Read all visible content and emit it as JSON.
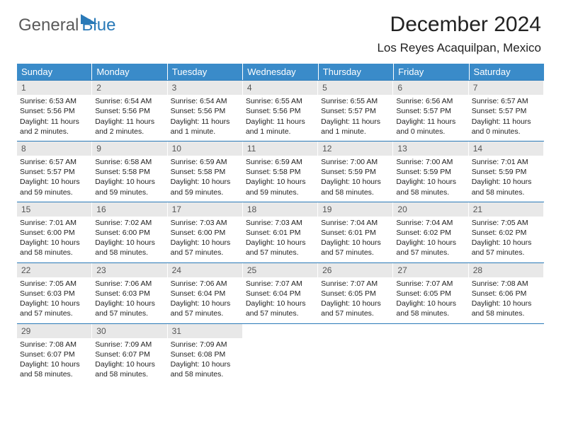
{
  "logo": {
    "part1": "General",
    "part2": "Blue"
  },
  "header": {
    "title": "December 2024",
    "location": "Los Reyes Acaquilpan, Mexico"
  },
  "calendar": {
    "header_bg": "#3a8bc9",
    "header_fg": "#ffffff",
    "daynum_bg": "#e8e8e8",
    "rule_color": "#2a7ab8",
    "weekdays": [
      "Sunday",
      "Monday",
      "Tuesday",
      "Wednesday",
      "Thursday",
      "Friday",
      "Saturday"
    ],
    "weeks": [
      [
        {
          "n": "1",
          "sr": "Sunrise: 6:53 AM",
          "ss": "Sunset: 5:56 PM",
          "d1": "Daylight: 11 hours",
          "d2": "and 2 minutes."
        },
        {
          "n": "2",
          "sr": "Sunrise: 6:54 AM",
          "ss": "Sunset: 5:56 PM",
          "d1": "Daylight: 11 hours",
          "d2": "and 2 minutes."
        },
        {
          "n": "3",
          "sr": "Sunrise: 6:54 AM",
          "ss": "Sunset: 5:56 PM",
          "d1": "Daylight: 11 hours",
          "d2": "and 1 minute."
        },
        {
          "n": "4",
          "sr": "Sunrise: 6:55 AM",
          "ss": "Sunset: 5:56 PM",
          "d1": "Daylight: 11 hours",
          "d2": "and 1 minute."
        },
        {
          "n": "5",
          "sr": "Sunrise: 6:55 AM",
          "ss": "Sunset: 5:57 PM",
          "d1": "Daylight: 11 hours",
          "d2": "and 1 minute."
        },
        {
          "n": "6",
          "sr": "Sunrise: 6:56 AM",
          "ss": "Sunset: 5:57 PM",
          "d1": "Daylight: 11 hours",
          "d2": "and 0 minutes."
        },
        {
          "n": "7",
          "sr": "Sunrise: 6:57 AM",
          "ss": "Sunset: 5:57 PM",
          "d1": "Daylight: 11 hours",
          "d2": "and 0 minutes."
        }
      ],
      [
        {
          "n": "8",
          "sr": "Sunrise: 6:57 AM",
          "ss": "Sunset: 5:57 PM",
          "d1": "Daylight: 10 hours",
          "d2": "and 59 minutes."
        },
        {
          "n": "9",
          "sr": "Sunrise: 6:58 AM",
          "ss": "Sunset: 5:58 PM",
          "d1": "Daylight: 10 hours",
          "d2": "and 59 minutes."
        },
        {
          "n": "10",
          "sr": "Sunrise: 6:59 AM",
          "ss": "Sunset: 5:58 PM",
          "d1": "Daylight: 10 hours",
          "d2": "and 59 minutes."
        },
        {
          "n": "11",
          "sr": "Sunrise: 6:59 AM",
          "ss": "Sunset: 5:58 PM",
          "d1": "Daylight: 10 hours",
          "d2": "and 59 minutes."
        },
        {
          "n": "12",
          "sr": "Sunrise: 7:00 AM",
          "ss": "Sunset: 5:59 PM",
          "d1": "Daylight: 10 hours",
          "d2": "and 58 minutes."
        },
        {
          "n": "13",
          "sr": "Sunrise: 7:00 AM",
          "ss": "Sunset: 5:59 PM",
          "d1": "Daylight: 10 hours",
          "d2": "and 58 minutes."
        },
        {
          "n": "14",
          "sr": "Sunrise: 7:01 AM",
          "ss": "Sunset: 5:59 PM",
          "d1": "Daylight: 10 hours",
          "d2": "and 58 minutes."
        }
      ],
      [
        {
          "n": "15",
          "sr": "Sunrise: 7:01 AM",
          "ss": "Sunset: 6:00 PM",
          "d1": "Daylight: 10 hours",
          "d2": "and 58 minutes."
        },
        {
          "n": "16",
          "sr": "Sunrise: 7:02 AM",
          "ss": "Sunset: 6:00 PM",
          "d1": "Daylight: 10 hours",
          "d2": "and 58 minutes."
        },
        {
          "n": "17",
          "sr": "Sunrise: 7:03 AM",
          "ss": "Sunset: 6:00 PM",
          "d1": "Daylight: 10 hours",
          "d2": "and 57 minutes."
        },
        {
          "n": "18",
          "sr": "Sunrise: 7:03 AM",
          "ss": "Sunset: 6:01 PM",
          "d1": "Daylight: 10 hours",
          "d2": "and 57 minutes."
        },
        {
          "n": "19",
          "sr": "Sunrise: 7:04 AM",
          "ss": "Sunset: 6:01 PM",
          "d1": "Daylight: 10 hours",
          "d2": "and 57 minutes."
        },
        {
          "n": "20",
          "sr": "Sunrise: 7:04 AM",
          "ss": "Sunset: 6:02 PM",
          "d1": "Daylight: 10 hours",
          "d2": "and 57 minutes."
        },
        {
          "n": "21",
          "sr": "Sunrise: 7:05 AM",
          "ss": "Sunset: 6:02 PM",
          "d1": "Daylight: 10 hours",
          "d2": "and 57 minutes."
        }
      ],
      [
        {
          "n": "22",
          "sr": "Sunrise: 7:05 AM",
          "ss": "Sunset: 6:03 PM",
          "d1": "Daylight: 10 hours",
          "d2": "and 57 minutes."
        },
        {
          "n": "23",
          "sr": "Sunrise: 7:06 AM",
          "ss": "Sunset: 6:03 PM",
          "d1": "Daylight: 10 hours",
          "d2": "and 57 minutes."
        },
        {
          "n": "24",
          "sr": "Sunrise: 7:06 AM",
          "ss": "Sunset: 6:04 PM",
          "d1": "Daylight: 10 hours",
          "d2": "and 57 minutes."
        },
        {
          "n": "25",
          "sr": "Sunrise: 7:07 AM",
          "ss": "Sunset: 6:04 PM",
          "d1": "Daylight: 10 hours",
          "d2": "and 57 minutes."
        },
        {
          "n": "26",
          "sr": "Sunrise: 7:07 AM",
          "ss": "Sunset: 6:05 PM",
          "d1": "Daylight: 10 hours",
          "d2": "and 57 minutes."
        },
        {
          "n": "27",
          "sr": "Sunrise: 7:07 AM",
          "ss": "Sunset: 6:05 PM",
          "d1": "Daylight: 10 hours",
          "d2": "and 58 minutes."
        },
        {
          "n": "28",
          "sr": "Sunrise: 7:08 AM",
          "ss": "Sunset: 6:06 PM",
          "d1": "Daylight: 10 hours",
          "d2": "and 58 minutes."
        }
      ],
      [
        {
          "n": "29",
          "sr": "Sunrise: 7:08 AM",
          "ss": "Sunset: 6:07 PM",
          "d1": "Daylight: 10 hours",
          "d2": "and 58 minutes."
        },
        {
          "n": "30",
          "sr": "Sunrise: 7:09 AM",
          "ss": "Sunset: 6:07 PM",
          "d1": "Daylight: 10 hours",
          "d2": "and 58 minutes."
        },
        {
          "n": "31",
          "sr": "Sunrise: 7:09 AM",
          "ss": "Sunset: 6:08 PM",
          "d1": "Daylight: 10 hours",
          "d2": "and 58 minutes."
        },
        {
          "empty": true,
          "n": "",
          "sr": "",
          "ss": "",
          "d1": "",
          "d2": ""
        },
        {
          "empty": true,
          "n": "",
          "sr": "",
          "ss": "",
          "d1": "",
          "d2": ""
        },
        {
          "empty": true,
          "n": "",
          "sr": "",
          "ss": "",
          "d1": "",
          "d2": ""
        },
        {
          "empty": true,
          "n": "",
          "sr": "",
          "ss": "",
          "d1": "",
          "d2": ""
        }
      ]
    ]
  }
}
